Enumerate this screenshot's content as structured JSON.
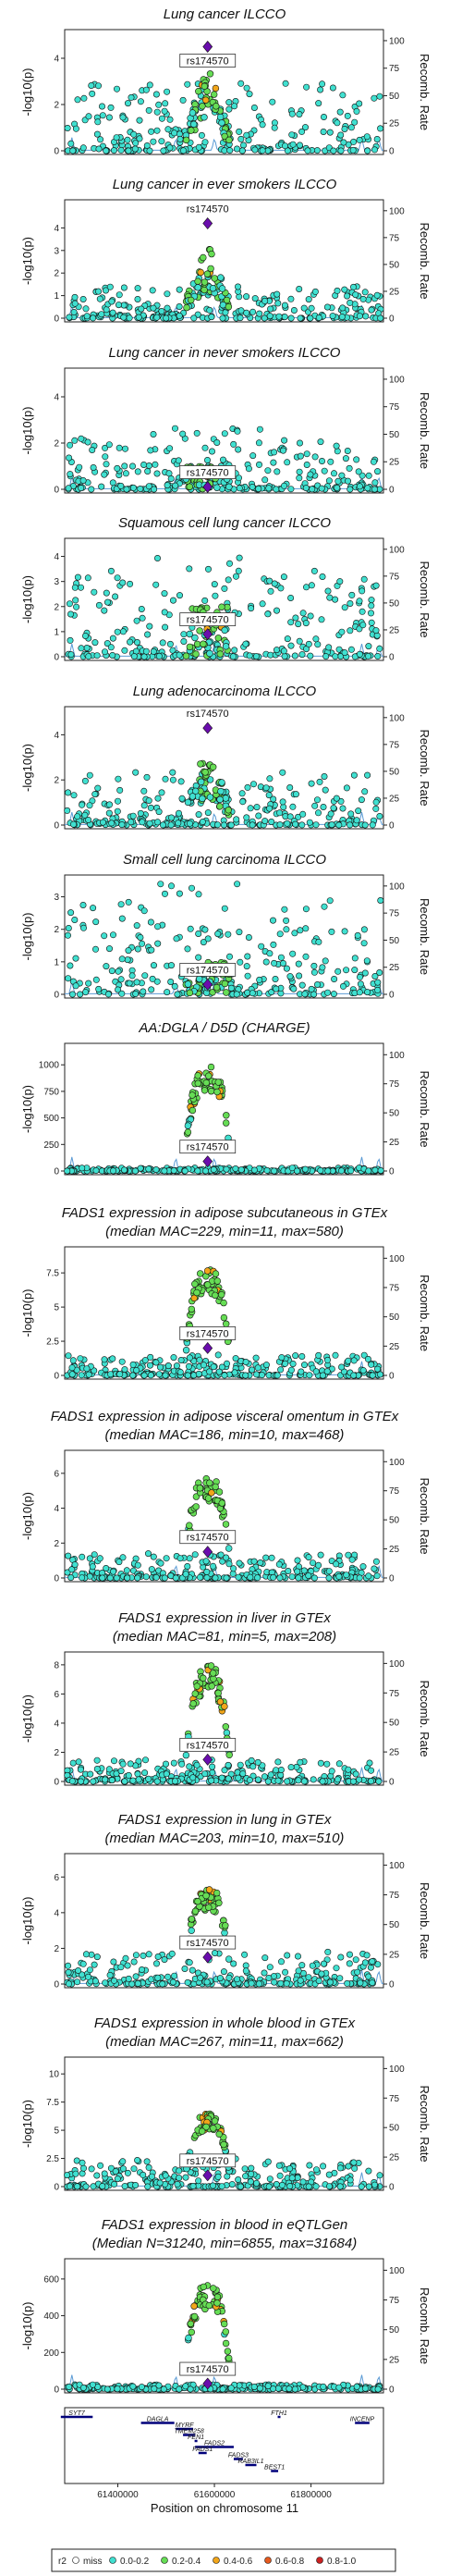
{
  "chart_data": {
    "type": "scatter",
    "lead_snp": "rs174570",
    "right_axis_label": "Recomb. Rate",
    "right_axis_ticks": [
      0,
      25,
      50,
      75,
      100
    ],
    "panels": [
      {
        "title": [
          "Lung cancer ILCCO"
        ],
        "ylabel": "-log10(p)",
        "yticks": [
          0,
          2,
          4
        ],
        "ymax": 5.0,
        "lead_value": 4.5,
        "label_pos": "below",
        "peak_type": "tower",
        "peak_max": 3.8,
        "bg_max": 3.0
      },
      {
        "title": [
          "Lung cancer in ever smokers ILCCO"
        ],
        "ylabel": "-log10(p)",
        "yticks": [
          0,
          1,
          2,
          3,
          4
        ],
        "ymax": 5.0,
        "lead_value": 4.2,
        "label_pos": "above",
        "peak_type": "tower",
        "peak_max": 3.4,
        "bg_max": 1.4
      },
      {
        "title": [
          "Lung cancer in never smokers ILCCO"
        ],
        "ylabel": "-log10(p)",
        "yticks": [
          0,
          2,
          4
        ],
        "ymax": 5.0,
        "lead_value": 0.1,
        "label_pos": "above",
        "peak_type": "low",
        "peak_max": 1.0,
        "bg_max": 2.2
      },
      {
        "title": [
          "Squamous cell lung cancer ILCCO"
        ],
        "ylabel": "-log10(p)",
        "yticks": [
          0,
          1,
          2,
          3,
          4
        ],
        "ymax": 4.5,
        "lead_value": 0.9,
        "label_pos": "above",
        "peak_type": "low",
        "peak_max": 2.0,
        "bg_max": 3.5
      },
      {
        "title": [
          "Lung adenocarcinoma ILCCO"
        ],
        "ylabel": "-log10(p)",
        "yticks": [
          0,
          2,
          4
        ],
        "ymax": 5.0,
        "lead_value": 4.3,
        "label_pos": "above",
        "peak_type": "tower",
        "peak_max": 3.7,
        "bg_max": 2.4
      },
      {
        "title": [
          "Small cell lung carcinoma ILCCO"
        ],
        "ylabel": "-log10(p)",
        "yticks": [
          0,
          1,
          2,
          3
        ],
        "ymax": 3.5,
        "lead_value": 0.3,
        "label_pos": "above",
        "peak_type": "low",
        "peak_max": 1.0,
        "bg_max": 3.0
      },
      {
        "title": [
          "AA:DGLA / D5D (CHARGE)"
        ],
        "ylabel": "-log10(p)",
        "yticks": [
          0,
          250,
          500,
          750,
          1000
        ],
        "ymax": 1150,
        "lead_value": 90,
        "label_pos": "above",
        "peak_type": "mesa",
        "peak_max": 1000,
        "bg_max": 30
      },
      {
        "title": [
          "FADS1 expression in adipose subcutaneous in GTEx",
          "(median MAC=229, min=11, max=580)"
        ],
        "ylabel": "-log10(p)",
        "yticks": [
          0,
          2.5,
          5.0,
          7.5
        ],
        "ymax": 9.0,
        "lead_value": 2.0,
        "label_pos": "above",
        "peak_type": "mesa",
        "peak_max": 8.0,
        "bg_max": 1.5
      },
      {
        "title": [
          "FADS1 expression in adipose visceral omentum in GTEx",
          "(median MAC=186, min=10, max=468)"
        ],
        "ylabel": "-log10(p)",
        "yticks": [
          0,
          2,
          4,
          6
        ],
        "ymax": 7.0,
        "lead_value": 1.5,
        "label_pos": "above",
        "peak_type": "mesa",
        "peak_max": 5.8,
        "bg_max": 1.4
      },
      {
        "title": [
          "FADS1 expression in liver in GTEx",
          "(median MAC=81, min=5, max=208)"
        ],
        "ylabel": "-log10(p)",
        "yticks": [
          0,
          2,
          4,
          6,
          8
        ],
        "ymax": 8.5,
        "lead_value": 1.5,
        "label_pos": "above",
        "peak_type": "mesa",
        "peak_max": 8.0,
        "bg_max": 1.5
      },
      {
        "title": [
          "FADS1 expression in lung in GTEx",
          "(median MAC=203, min=10, max=510)"
        ],
        "ylabel": "-log10(p)",
        "yticks": [
          0,
          2,
          4,
          6
        ],
        "ymax": 7.0,
        "lead_value": 1.5,
        "label_pos": "above",
        "peak_type": "mesa",
        "peak_max": 5.5,
        "bg_max": 1.8
      },
      {
        "title": [
          "FADS1 expression in whole blood in GTEx",
          "(median MAC=267, min=11, max=662)"
        ],
        "ylabel": "-log10(p)",
        "yticks": [
          0,
          2.5,
          5.0,
          7.5,
          10.0
        ],
        "ymax": 11.0,
        "lead_value": 1.0,
        "label_pos": "above",
        "peak_type": "mesa",
        "peak_max": 6.5,
        "bg_max": 2.5
      },
      {
        "title": [
          "FADS1 expression in blood in eQTLGen",
          "(Median N=31240, min=6855, max=31684)"
        ],
        "ylabel": "-log10(p)",
        "yticks": [
          0,
          200,
          400,
          600
        ],
        "ymax": 680,
        "lead_value": 30,
        "label_pos": "above",
        "peak_type": "mesa",
        "peak_max": 580,
        "bg_max": 25
      }
    ],
    "genes": [
      {
        "name": "SYT7",
        "start": 61282000,
        "end": 61348000,
        "row": 0
      },
      {
        "name": "DAGLA",
        "start": 61448000,
        "end": 61517000,
        "row": 1
      },
      {
        "name": "FTH1",
        "start": 61731000,
        "end": 61735000,
        "row": 0
      },
      {
        "name": "INCENP",
        "start": 61891000,
        "end": 61921000,
        "row": 1
      },
      {
        "name": "MYRF",
        "start": 61520000,
        "end": 61556000,
        "row": 2
      },
      {
        "name": "TMEM258",
        "start": 61535000,
        "end": 61560000,
        "row": 3
      },
      {
        "name": "FEN1",
        "start": 61559000,
        "end": 61564000,
        "row": 4
      },
      {
        "name": "FADS2",
        "start": 61560000,
        "end": 61640000,
        "row": 5
      },
      {
        "name": "FADS1",
        "start": 61567000,
        "end": 61584000,
        "row": 6
      },
      {
        "name": "FADS3",
        "start": 61640000,
        "end": 61659000,
        "row": 7
      },
      {
        "name": "RAB3IL1",
        "start": 61664000,
        "end": 61687000,
        "row": 8
      },
      {
        "name": "BEST1",
        "start": 61717000,
        "end": 61732000,
        "row": 9
      }
    ],
    "x_range": [
      61290000,
      61950000
    ],
    "xticks": [
      61400000,
      61600000,
      61800000
    ],
    "xlabel": "Position on chromosome 11",
    "legend": {
      "title": "r2",
      "entries": [
        {
          "label": "miss",
          "color": "#ffffff"
        },
        {
          "label": "0.0-0.2",
          "color": "#40e0d0"
        },
        {
          "label": "0.2-0.4",
          "color": "#66dd55"
        },
        {
          "label": "0.4-0.6",
          "color": "#f2a61a"
        },
        {
          "label": "0.6-0.8",
          "color": "#e55a1f"
        },
        {
          "label": "0.8-1.0",
          "color": "#cc2222"
        }
      ]
    }
  },
  "colors": {
    "lead_snp": "#6a0dad",
    "recomb_line": "#5b9bd5",
    "gene": "#00007a",
    "r2_low": "#40e0d0",
    "r2_mid": "#66dd55",
    "r2_high": "#f2a61a"
  }
}
